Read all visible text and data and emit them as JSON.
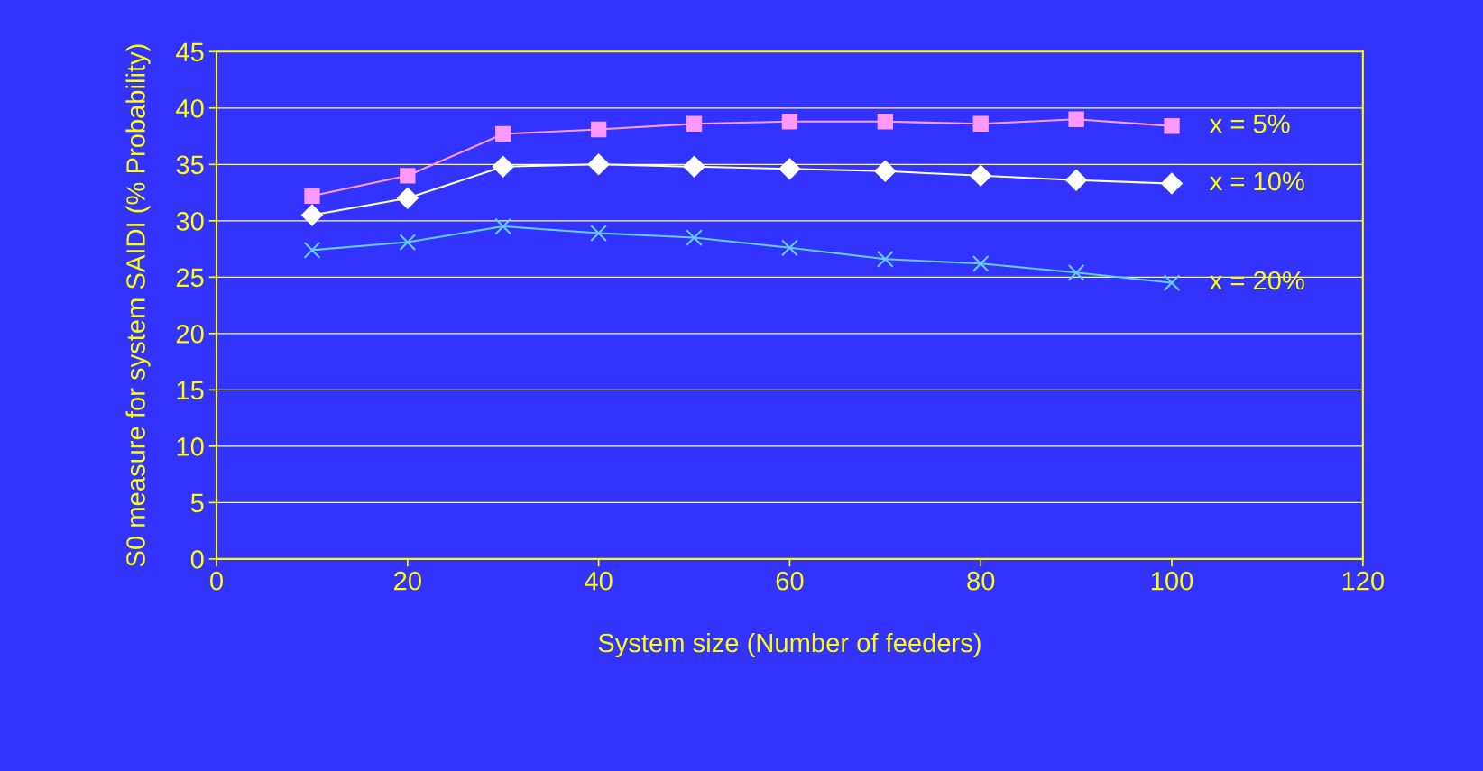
{
  "chart_data": {
    "type": "line",
    "xlabel": "System size (Number of feeders)",
    "ylabel": "S0 measure for system SAIDI (% Probability)",
    "x": [
      10,
      20,
      30,
      40,
      50,
      60,
      70,
      80,
      90,
      100
    ],
    "series": [
      {
        "name": "x = 5%",
        "color": "#ff99ff",
        "marker": "square",
        "values": [
          32.2,
          34.0,
          37.7,
          38.1,
          38.6,
          38.8,
          38.8,
          38.6,
          39.0,
          38.4
        ]
      },
      {
        "name": "x = 10%",
        "color": "#ffffff",
        "marker": "diamond",
        "values": [
          30.5,
          32.0,
          34.8,
          35.0,
          34.8,
          34.6,
          34.4,
          34.0,
          33.6,
          33.3
        ]
      },
      {
        "name": "x = 20%",
        "color": "#66ccff",
        "marker": "cross",
        "values": [
          27.4,
          28.1,
          29.5,
          28.9,
          28.5,
          27.6,
          26.6,
          26.2,
          25.4,
          24.5
        ]
      }
    ],
    "xlim": [
      0,
      120
    ],
    "xticks": [
      0,
      20,
      40,
      60,
      80,
      100,
      120
    ],
    "ylim": [
      0,
      45
    ],
    "yticks": [
      0,
      5,
      10,
      15,
      20,
      25,
      30,
      35,
      40,
      45
    ],
    "grid": "y",
    "legend": false
  }
}
